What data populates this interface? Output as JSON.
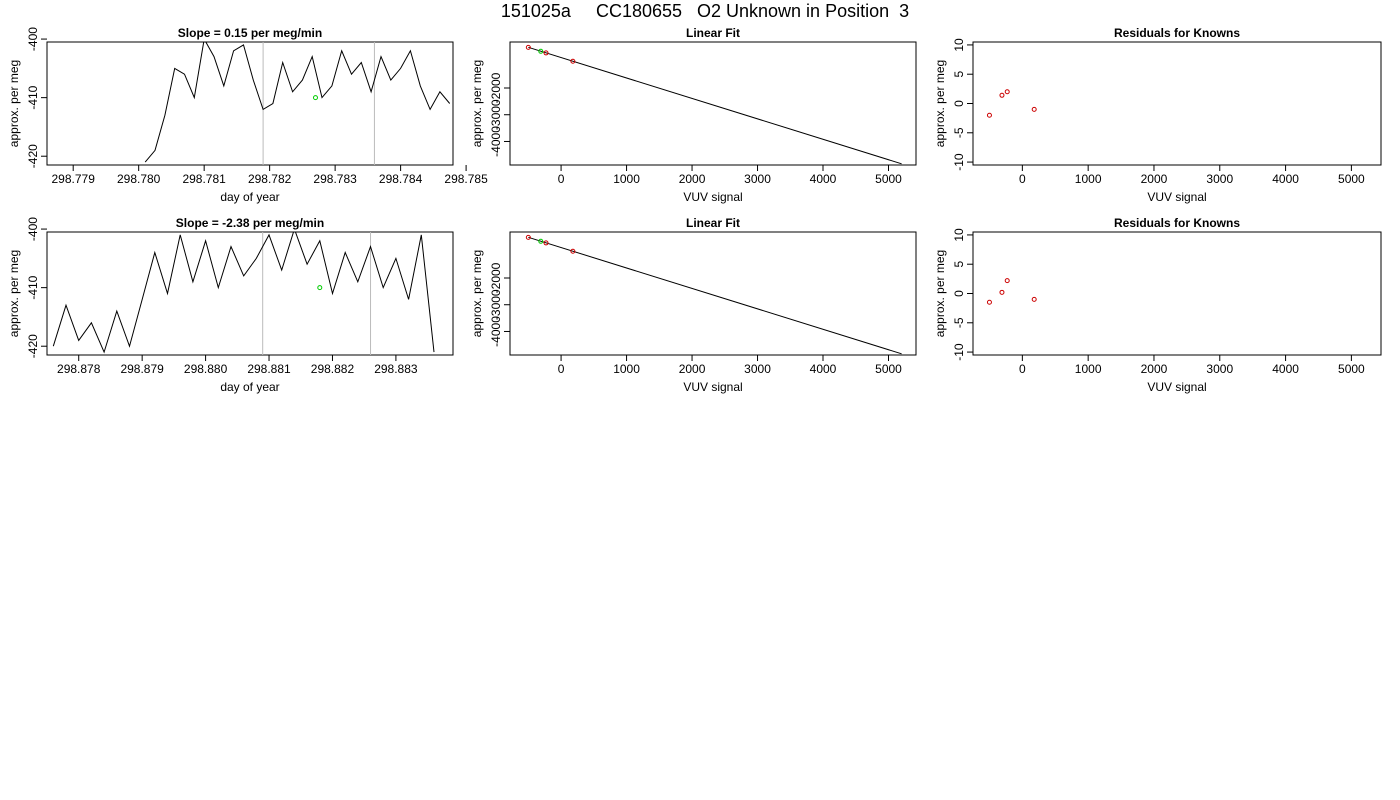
{
  "page": {
    "title": "151025a     CC180655   O2 Unknown in Position  3"
  },
  "colors": {
    "axis": "#000000",
    "line": "#000000",
    "marker_known": "#cc0000",
    "marker_unknown": "#00cc00",
    "vertical_guides": "#bbbbbb"
  },
  "chart_data": [
    {
      "type": "line",
      "title": "Slope =  0.15  per meg/min",
      "xlabel": "day of year",
      "ylabel": "approx. per meg",
      "xlim": [
        298.7786,
        298.7848
      ],
      "ylim": [
        -421.5,
        -400.5
      ],
      "xticks": [
        "298.779",
        "298.780",
        "298.781",
        "298.782",
        "298.783",
        "298.784",
        "298.785"
      ],
      "yticks": [
        "-400",
        "-410",
        "-420"
      ],
      "vlines": [
        298.7819,
        298.7836
      ],
      "series": [
        {
          "x": [
            298.7801,
            298.78025,
            298.7804,
            298.78055,
            298.7807,
            298.78085,
            298.781,
            298.78115,
            298.7813,
            298.78145,
            298.7816,
            298.78175,
            298.7819,
            298.78205,
            298.7822,
            298.78235,
            298.7825,
            298.78265,
            298.7828,
            298.78295,
            298.7831,
            298.78325,
            298.7834,
            298.78355,
            298.7837,
            298.78385,
            298.784,
            298.78415,
            298.7843,
            298.78445,
            298.7846,
            298.78475
          ],
          "y": [
            -421,
            -419,
            -413,
            -405,
            -406,
            -410,
            -400,
            -403,
            -408,
            -402,
            -401,
            -407,
            -412,
            -411,
            -404,
            -409,
            -407,
            -403,
            -410,
            -408,
            -402,
            -406,
            -404,
            -409,
            -403,
            -407,
            -405,
            -402,
            -408,
            -412,
            -409,
            -411
          ]
        }
      ],
      "markers": [
        {
          "x": 298.7827,
          "y": -410,
          "kind": "unknown"
        }
      ]
    },
    {
      "type": "scatter",
      "title": "Linear Fit",
      "xlabel": "VUV signal",
      "ylabel": "approx. per meg",
      "xlim": [
        -780,
        5420
      ],
      "ylim": [
        -4880,
        -280
      ],
      "xticks": [
        "0",
        "1000",
        "2000",
        "3000",
        "4000",
        "5000"
      ],
      "yticks": [
        "-2000",
        "-3000",
        "-4000"
      ],
      "fit_line": [
        [
          -500,
          -479
        ],
        [
          5200,
          -4835
        ]
      ],
      "known_points": [
        [
          -500,
          -481
        ],
        [
          -230,
          -689
        ],
        [
          180,
          -1001
        ]
      ],
      "unknown_points": [
        [
          -310,
          -628
        ]
      ]
    },
    {
      "type": "scatter",
      "title": "Residuals for Knowns",
      "xlabel": "VUV signal",
      "ylabel": "approx. per meg",
      "xlim": [
        -750,
        5450
      ],
      "ylim": [
        -10.5,
        10.5
      ],
      "xticks": [
        "0",
        "1000",
        "2000",
        "3000",
        "4000",
        "5000"
      ],
      "yticks": [
        "10",
        "5",
        "0",
        "-5",
        "-10"
      ],
      "known_points": [
        [
          -500,
          -2
        ],
        [
          -310,
          1.4
        ],
        [
          -230,
          2
        ],
        [
          180,
          -1
        ]
      ]
    },
    {
      "type": "line",
      "title": "Slope =  -2.38  per meg/min",
      "xlabel": "day of year",
      "ylabel": "approx. per meg",
      "xlim": [
        298.8775,
        298.8839
      ],
      "ylim": [
        -421.5,
        -400.5
      ],
      "xticks": [
        "298.878",
        "298.879",
        "298.880",
        "298.881",
        "298.882",
        "298.883"
      ],
      "yticks": [
        "-400",
        "-410",
        "-420"
      ],
      "vlines": [
        298.8809,
        298.8826
      ],
      "series": [
        {
          "x": [
            298.8776,
            298.8778,
            298.878,
            298.8782,
            298.8784,
            298.8786,
            298.8788,
            298.879,
            298.8792,
            298.8794,
            298.8796,
            298.8798,
            298.88,
            298.8802,
            298.8804,
            298.8806,
            298.8808,
            298.881,
            298.8812,
            298.8814,
            298.8816,
            298.8818,
            298.882,
            298.8822,
            298.8824,
            298.8826,
            298.8828,
            298.883,
            298.8832,
            298.8834,
            298.8836
          ],
          "y": [
            -420,
            -413,
            -419,
            -416,
            -421,
            -414,
            -420,
            -412,
            -404,
            -411,
            -401,
            -409,
            -402,
            -410,
            -403,
            -408,
            -405,
            -401,
            -407,
            -400,
            -406,
            -402,
            -411,
            -404,
            -409,
            -403,
            -410,
            -405,
            -412,
            -401,
            -421
          ]
        }
      ],
      "markers": [
        {
          "x": 298.8818,
          "y": -410,
          "kind": "unknown"
        }
      ]
    },
    {
      "type": "scatter",
      "title": "Linear Fit",
      "xlabel": "VUV signal",
      "ylabel": "approx. per meg",
      "xlim": [
        -780,
        5420
      ],
      "ylim": [
        -4880,
        -280
      ],
      "xticks": [
        "0",
        "1000",
        "2000",
        "3000",
        "4000",
        "5000"
      ],
      "yticks": [
        "-2000",
        "-3000",
        "-4000"
      ],
      "fit_line": [
        [
          -500,
          -479
        ],
        [
          5200,
          -4835
        ]
      ],
      "known_points": [
        [
          -500,
          -481
        ],
        [
          -230,
          -689
        ],
        [
          180,
          -1001
        ]
      ],
      "unknown_points": [
        [
          -310,
          -628
        ]
      ]
    },
    {
      "type": "scatter",
      "title": "Residuals for Knowns",
      "xlabel": "VUV signal",
      "ylabel": "approx. per meg",
      "xlim": [
        -750,
        5450
      ],
      "ylim": [
        -10.5,
        10.5
      ],
      "xticks": [
        "0",
        "1000",
        "2000",
        "3000",
        "4000",
        "5000"
      ],
      "yticks": [
        "10",
        "5",
        "0",
        "-5",
        "-10"
      ],
      "known_points": [
        [
          -500,
          -1.5
        ],
        [
          -310,
          0.2
        ],
        [
          -230,
          2.2
        ],
        [
          180,
          -1
        ]
      ]
    }
  ]
}
